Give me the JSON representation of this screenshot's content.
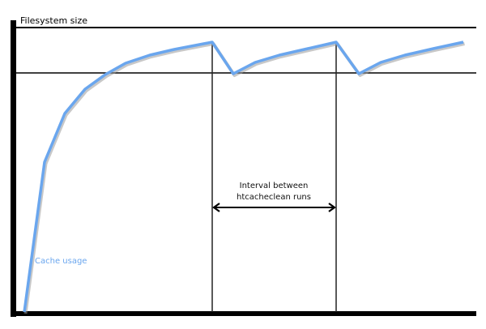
{
  "title": "Filesystem size",
  "interval_label": [
    "Interval between",
    "htcacheclean runs"
  ],
  "series_label": "Cache usage",
  "colors": {
    "cache_line": "#6aa6ee",
    "axis": "#000000",
    "shadow": "#9a9a9a"
  }
}
